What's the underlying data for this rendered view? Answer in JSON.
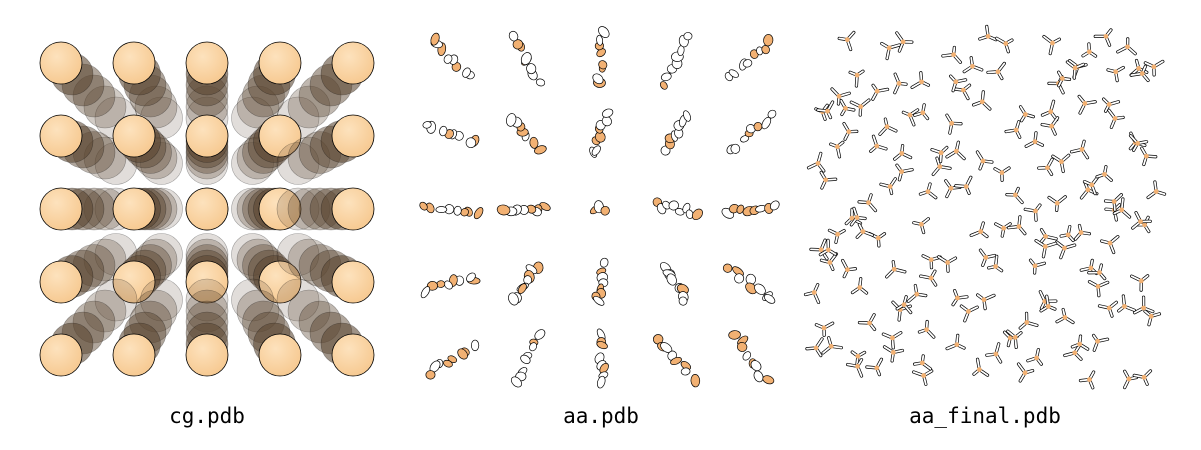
{
  "panels": [
    {
      "id": "cg",
      "label": "cg.pdb"
    },
    {
      "id": "aa",
      "label": "aa.pdb"
    },
    {
      "id": "final",
      "label": "aa_final.pdb"
    }
  ],
  "colors": {
    "bead": "#f6c88f",
    "bead_dark": "#5a4530",
    "atom_highlight": "#f2b173",
    "stroke": "#000000",
    "background": "#ffffff"
  },
  "grid": {
    "rows": 5,
    "cols": 5
  }
}
